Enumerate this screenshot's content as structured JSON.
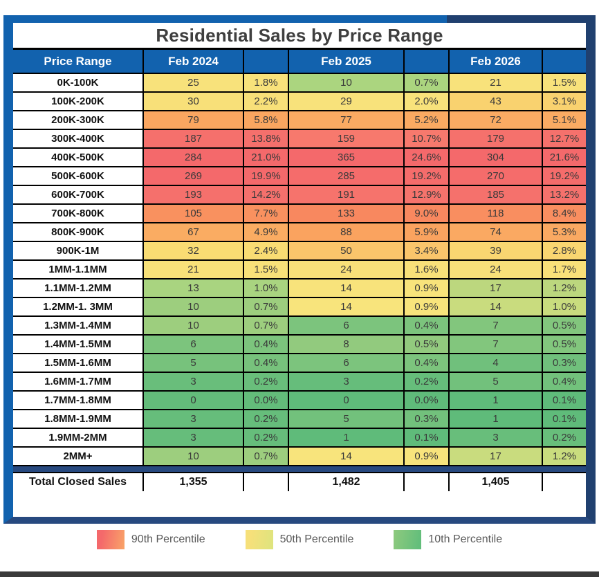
{
  "title": "Residential Sales by Price Range",
  "columns": [
    "Price Range",
    "Feb 2024",
    "",
    "Feb 2025",
    "",
    "Feb 2026",
    ""
  ],
  "rows": [
    {
      "range": "0K-100K",
      "y2024": {
        "count": "25",
        "pct": "1.8%",
        "color": "#F8E27B"
      },
      "y2025": {
        "count": "10",
        "pct": "0.7%",
        "color": "#ABD57F"
      },
      "y2026": {
        "count": "21",
        "pct": "1.5%",
        "color": "#F8E27B"
      }
    },
    {
      "range": "100K-200K",
      "y2024": {
        "count": "30",
        "pct": "2.2%",
        "color": "#F8E079"
      },
      "y2025": {
        "count": "29",
        "pct": "2.0%",
        "color": "#F8E27B"
      },
      "y2026": {
        "count": "43",
        "pct": "3.1%",
        "color": "#F9D26F"
      }
    },
    {
      "range": "200K-300K",
      "y2024": {
        "count": "79",
        "pct": "5.8%",
        "color": "#FAA660"
      },
      "y2025": {
        "count": "77",
        "pct": "5.2%",
        "color": "#FAAA62"
      },
      "y2026": {
        "count": "72",
        "pct": "5.1%",
        "color": "#FAAB63"
      }
    },
    {
      "range": "300K-400K",
      "y2024": {
        "count": "187",
        "pct": "13.8%",
        "color": "#F5706C"
      },
      "y2025": {
        "count": "159",
        "pct": "10.7%",
        "color": "#F7796D"
      },
      "y2026": {
        "count": "179",
        "pct": "12.7%",
        "color": "#F5716C"
      }
    },
    {
      "range": "400K-500K",
      "y2024": {
        "count": "284",
        "pct": "21.0%",
        "color": "#F4696B"
      },
      "y2025": {
        "count": "365",
        "pct": "24.6%",
        "color": "#F4696B"
      },
      "y2026": {
        "count": "304",
        "pct": "21.6%",
        "color": "#F4696B"
      }
    },
    {
      "range": "500K-600K",
      "y2024": {
        "count": "269",
        "pct": "19.9%",
        "color": "#F4696B"
      },
      "y2025": {
        "count": "285",
        "pct": "19.2%",
        "color": "#F56C6B"
      },
      "y2026": {
        "count": "270",
        "pct": "19.2%",
        "color": "#F56C6B"
      }
    },
    {
      "range": "600K-700K",
      "y2024": {
        "count": "193",
        "pct": "14.2%",
        "color": "#F5706C"
      },
      "y2025": {
        "count": "191",
        "pct": "12.9%",
        "color": "#F6736C"
      },
      "y2026": {
        "count": "185",
        "pct": "13.2%",
        "color": "#F5716C"
      }
    },
    {
      "range": "700K-800K",
      "y2024": {
        "count": "105",
        "pct": "7.7%",
        "color": "#F9915F"
      },
      "y2025": {
        "count": "133",
        "pct": "9.0%",
        "color": "#F8885F"
      },
      "y2026": {
        "count": "118",
        "pct": "8.4%",
        "color": "#F98E60"
      }
    },
    {
      "range": "800K-900K",
      "y2024": {
        "count": "67",
        "pct": "4.9%",
        "color": "#FAAC62"
      },
      "y2025": {
        "count": "88",
        "pct": "5.9%",
        "color": "#FAA35F"
      },
      "y2026": {
        "count": "74",
        "pct": "5.3%",
        "color": "#FAA962"
      }
    },
    {
      "range": "900K-1M",
      "y2024": {
        "count": "32",
        "pct": "2.4%",
        "color": "#F9DC73"
      },
      "y2025": {
        "count": "50",
        "pct": "3.4%",
        "color": "#FAC56B"
      },
      "y2026": {
        "count": "39",
        "pct": "2.8%",
        "color": "#F9D671"
      }
    },
    {
      "range": "1MM-1.1MM",
      "y2024": {
        "count": "21",
        "pct": "1.5%",
        "color": "#F8E179"
      },
      "y2025": {
        "count": "24",
        "pct": "1.6%",
        "color": "#F8E079"
      },
      "y2026": {
        "count": "24",
        "pct": "1.7%",
        "color": "#F8E079"
      }
    },
    {
      "range": "1.1MM-1.2MM",
      "y2024": {
        "count": "13",
        "pct": "1.0%",
        "color": "#A9D480"
      },
      "y2025": {
        "count": "14",
        "pct": "0.9%",
        "color": "#F8E37B"
      },
      "y2026": {
        "count": "17",
        "pct": "1.2%",
        "color": "#BCD77E"
      }
    },
    {
      "range": "1.2MM-1. 3MM",
      "y2024": {
        "count": "10",
        "pct": "0.7%",
        "color": "#9DCE7E"
      },
      "y2025": {
        "count": "14",
        "pct": "0.9%",
        "color": "#F8E47C"
      },
      "y2026": {
        "count": "14",
        "pct": "1.0%",
        "color": "#C9DC7E"
      }
    },
    {
      "range": "1.3MM-1.4MM",
      "y2024": {
        "count": "10",
        "pct": "0.7%",
        "color": "#9DCE7E"
      },
      "y2025": {
        "count": "6",
        "pct": "0.4%",
        "color": "#7CC47D"
      },
      "y2026": {
        "count": "7",
        "pct": "0.5%",
        "color": "#82C67D"
      }
    },
    {
      "range": "1.4MM-1.5MM",
      "y2024": {
        "count": "6",
        "pct": "0.4%",
        "color": "#7CC47D"
      },
      "y2025": {
        "count": "8",
        "pct": "0.5%",
        "color": "#92CA7E"
      },
      "y2026": {
        "count": "7",
        "pct": "0.5%",
        "color": "#82C67D"
      }
    },
    {
      "range": "1.5MM-1.6MM",
      "y2024": {
        "count": "5",
        "pct": "0.4%",
        "color": "#77C27C"
      },
      "y2025": {
        "count": "6",
        "pct": "0.4%",
        "color": "#7CC47D"
      },
      "y2026": {
        "count": "4",
        "pct": "0.3%",
        "color": "#70C07C"
      }
    },
    {
      "range": "1.6MM-1.7MM",
      "y2024": {
        "count": "3",
        "pct": "0.2%",
        "color": "#69BE7B"
      },
      "y2025": {
        "count": "3",
        "pct": "0.2%",
        "color": "#66BD7B"
      },
      "y2026": {
        "count": "5",
        "pct": "0.4%",
        "color": "#72C17C"
      }
    },
    {
      "range": "1.7MM-1.8MM",
      "y2024": {
        "count": "0",
        "pct": "0.0%",
        "color": "#63BC7A"
      },
      "y2025": {
        "count": "0",
        "pct": "0.0%",
        "color": "#5FBB7A"
      },
      "y2026": {
        "count": "1",
        "pct": "0.1%",
        "color": "#5FBB7A"
      }
    },
    {
      "range": "1.8MM-1.9MM",
      "y2024": {
        "count": "3",
        "pct": "0.2%",
        "color": "#66BD7B"
      },
      "y2025": {
        "count": "5",
        "pct": "0.3%",
        "color": "#72C17C"
      },
      "y2026": {
        "count": "1",
        "pct": "0.1%",
        "color": "#5FBB7A"
      }
    },
    {
      "range": "1.9MM-2MM",
      "y2024": {
        "count": "3",
        "pct": "0.2%",
        "color": "#66BD7B"
      },
      "y2025": {
        "count": "1",
        "pct": "0.1%",
        "color": "#5FBB7A"
      },
      "y2026": {
        "count": "3",
        "pct": "0.2%",
        "color": "#68BE7B"
      }
    },
    {
      "range": "2MM+",
      "y2024": {
        "count": "10",
        "pct": "0.7%",
        "color": "#9DCE7E"
      },
      "y2025": {
        "count": "14",
        "pct": "0.9%",
        "color": "#F8E47C"
      },
      "y2026": {
        "count": "17",
        "pct": "1.2%",
        "color": "#C9DC7E"
      }
    }
  ],
  "total": {
    "label": "Total Closed Sales",
    "values": [
      "1,355",
      "1,482",
      "1,405"
    ]
  },
  "legend": [
    {
      "label": "90th Percentile",
      "color": "#F4696B",
      "class": "sw-red"
    },
    {
      "label": "50th Percentile",
      "color": "#F6E07A",
      "class": "sw-yellow"
    },
    {
      "label": "10th Percentile",
      "color": "#63BE7B",
      "class": "sw-green"
    }
  ],
  "colors": {
    "header_bg": "#1262AE",
    "frame_blue": "#1262AE",
    "frame_navy": "#20406F",
    "title_text": "#3F3F3F",
    "legend_text": "#595959",
    "bottom_bar": "#3A3A3A",
    "scale_high": "#F4696B",
    "scale_mid": "#F8E27B",
    "scale_low": "#63BE7B"
  },
  "chart_data": {
    "type": "table",
    "subtype": "heatmap",
    "title": "Residential Sales by Price Range",
    "columns": [
      "Price Range",
      "Feb 2024 count",
      "Feb 2024 %",
      "Feb 2025 count",
      "Feb 2025 %",
      "Feb 2026 count",
      "Feb 2026 %"
    ],
    "categories": [
      "0K-100K",
      "100K-200K",
      "200K-300K",
      "300K-400K",
      "400K-500K",
      "500K-600K",
      "600K-700K",
      "700K-800K",
      "800K-900K",
      "900K-1M",
      "1MM-1.1MM",
      "1.1MM-1.2MM",
      "1.2MM-1. 3MM",
      "1.3MM-1.4MM",
      "1.4MM-1.5MM",
      "1.5MM-1.6MM",
      "1.6MM-1.7MM",
      "1.7MM-1.8MM",
      "1.8MM-1.9MM",
      "1.9MM-2MM",
      "2MM+"
    ],
    "series": [
      {
        "name": "Feb 2024 count",
        "values": [
          25,
          30,
          79,
          187,
          284,
          269,
          193,
          105,
          67,
          32,
          21,
          13,
          10,
          10,
          6,
          5,
          3,
          0,
          3,
          3,
          10
        ]
      },
      {
        "name": "Feb 2024 pct",
        "values": [
          1.8,
          2.2,
          5.8,
          13.8,
          21.0,
          19.9,
          14.2,
          7.7,
          4.9,
          2.4,
          1.5,
          1.0,
          0.7,
          0.7,
          0.4,
          0.4,
          0.2,
          0.0,
          0.2,
          0.2,
          0.7
        ]
      },
      {
        "name": "Feb 2025 count",
        "values": [
          10,
          29,
          77,
          159,
          365,
          285,
          191,
          133,
          88,
          50,
          24,
          14,
          14,
          6,
          8,
          6,
          3,
          0,
          5,
          1,
          14
        ]
      },
      {
        "name": "Feb 2025 pct",
        "values": [
          0.7,
          2.0,
          5.2,
          10.7,
          24.6,
          19.2,
          12.9,
          9.0,
          5.9,
          3.4,
          1.6,
          0.9,
          0.9,
          0.4,
          0.5,
          0.4,
          0.2,
          0.0,
          0.3,
          0.1,
          0.9
        ]
      },
      {
        "name": "Feb 2026 count",
        "values": [
          21,
          43,
          72,
          179,
          304,
          270,
          185,
          118,
          74,
          39,
          24,
          17,
          14,
          7,
          7,
          4,
          5,
          1,
          1,
          3,
          17
        ]
      },
      {
        "name": "Feb 2026 pct",
        "values": [
          1.5,
          3.1,
          5.1,
          12.7,
          21.6,
          19.2,
          13.2,
          8.4,
          5.3,
          2.8,
          1.7,
          1.2,
          1.0,
          0.5,
          0.5,
          0.3,
          0.4,
          0.1,
          0.1,
          0.2,
          1.2
        ]
      }
    ],
    "totals": {
      "Feb 2024": 1355,
      "Feb 2025": 1482,
      "Feb 2026": 1405
    },
    "legend_entries": [
      "90th Percentile",
      "50th Percentile",
      "10th Percentile"
    ],
    "color_scale": {
      "high": "#F4696B",
      "mid": "#F8E27B",
      "low": "#63BE7B"
    }
  }
}
